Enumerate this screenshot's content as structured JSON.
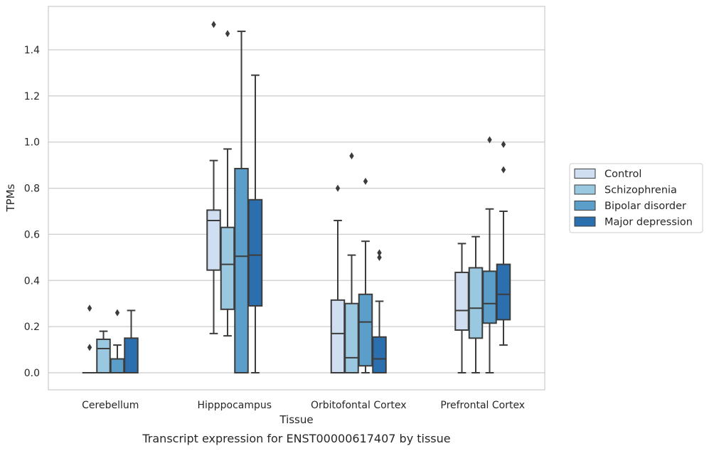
{
  "chart_data": {
    "type": "boxplot",
    "xlabel": "Tissue",
    "ylabel": "TPMs",
    "caption": "Transcript expression for ENST00000617407 by tissue",
    "ylim": [
      -0.07,
      1.58
    ],
    "yticks": [
      "0.0",
      "0.2",
      "0.4",
      "0.6",
      "0.8",
      "1.0",
      "1.2",
      "1.4"
    ],
    "grid": true,
    "legend_position": "right",
    "categories": [
      "Cerebellum",
      "Hipppocampus",
      "Orbitofontal Cortex",
      "Prefrontal Cortex"
    ],
    "series": [
      {
        "name": "Control",
        "color": "#cfdef0",
        "boxes": [
          {
            "whislo": 0.0,
            "q1": 0.0,
            "med": 0.0,
            "q3": 0.0,
            "whishi": 0.0,
            "fliers": [
              0.11,
              0.28
            ]
          },
          {
            "whislo": 0.17,
            "q1": 0.445,
            "med": 0.66,
            "q3": 0.705,
            "whishi": 0.92,
            "fliers": [
              1.51
            ]
          },
          {
            "whislo": 0.0,
            "q1": 0.0,
            "med": 0.17,
            "q3": 0.315,
            "whishi": 0.66,
            "fliers": [
              0.8
            ]
          },
          {
            "whislo": 0.0,
            "q1": 0.185,
            "med": 0.27,
            "q3": 0.435,
            "whishi": 0.56,
            "fliers": []
          }
        ]
      },
      {
        "name": "Schizophrenia",
        "color": "#9ac8e0",
        "boxes": [
          {
            "whislo": 0.0,
            "q1": 0.0,
            "med": 0.105,
            "q3": 0.145,
            "whishi": 0.18,
            "fliers": []
          },
          {
            "whislo": 0.16,
            "q1": 0.275,
            "med": 0.47,
            "q3": 0.63,
            "whishi": 0.97,
            "fliers": [
              1.47
            ]
          },
          {
            "whislo": 0.0,
            "q1": 0.0,
            "med": 0.065,
            "q3": 0.3,
            "whishi": 0.51,
            "fliers": [
              0.94
            ]
          },
          {
            "whislo": 0.0,
            "q1": 0.15,
            "med": 0.28,
            "q3": 0.455,
            "whishi": 0.59,
            "fliers": []
          }
        ]
      },
      {
        "name": "Bipolar disorder",
        "color": "#5a9ec9",
        "boxes": [
          {
            "whislo": 0.0,
            "q1": 0.0,
            "med": 0.06,
            "q3": 0.06,
            "whishi": 0.12,
            "fliers": [
              0.26
            ]
          },
          {
            "whislo": 0.0,
            "q1": 0.0,
            "med": 0.505,
            "q3": 0.885,
            "whishi": 1.48,
            "fliers": []
          },
          {
            "whislo": 0.0,
            "q1": 0.03,
            "med": 0.22,
            "q3": 0.34,
            "whishi": 0.57,
            "fliers": [
              0.83
            ]
          },
          {
            "whislo": 0.0,
            "q1": 0.215,
            "med": 0.3,
            "q3": 0.44,
            "whishi": 0.71,
            "fliers": [
              1.01
            ]
          }
        ]
      },
      {
        "name": "Major depression",
        "color": "#2c6faf",
        "boxes": [
          {
            "whislo": 0.0,
            "q1": 0.0,
            "med": 0.0,
            "q3": 0.15,
            "whishi": 0.27,
            "fliers": []
          },
          {
            "whislo": 0.0,
            "q1": 0.29,
            "med": 0.51,
            "q3": 0.75,
            "whishi": 1.29,
            "fliers": []
          },
          {
            "whislo": 0.0,
            "q1": 0.0,
            "med": 0.06,
            "q3": 0.155,
            "whishi": 0.31,
            "fliers": [
              0.5,
              0.52
            ]
          },
          {
            "whislo": 0.12,
            "q1": 0.23,
            "med": 0.34,
            "q3": 0.47,
            "whishi": 0.7,
            "fliers": [
              0.88,
              0.99
            ]
          }
        ]
      }
    ]
  }
}
